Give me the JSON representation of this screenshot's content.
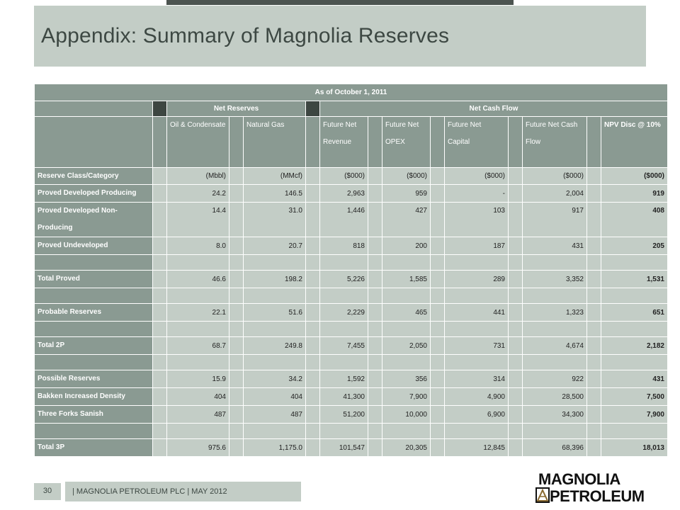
{
  "slide": {
    "title": "Appendix: Summary of Magnolia Reserves",
    "page_number": "30",
    "footer_text": "| MAGNOLIA PETROLEUM PLC | MAY 2012",
    "logo_line1": "MAGNOLIA",
    "logo_line2": "PETROLEUM"
  },
  "table": {
    "caption": "As of October 1, 2011",
    "group_net_reserves": "Net Reserves",
    "group_net_cash_flow": "Net Cash Flow",
    "col_oil": "Oil & Condensate",
    "col_gas": "Natural Gas",
    "col_revenue": "Future Net Revenue",
    "col_opex": "Future Net OPEX",
    "col_capital": "Future Net Capital",
    "col_cashflow": "Future Net Cash Flow",
    "col_npv": "NPV Disc @ 10%",
    "units": {
      "label": "Reserve Class/Category",
      "oil": "(Mbbl)",
      "gas": "(MMcf)",
      "revenue": "($000)",
      "opex": "($000)",
      "capital": "($000)",
      "cashflow": "($000)",
      "npv": "($000)"
    },
    "rows": [
      {
        "name": "Proved Developed Producing",
        "oil": "24.2",
        "gas": "146.5",
        "revenue": "2,963",
        "opex": "959",
        "capital": "-",
        "cashflow": "2,004",
        "npv": "919"
      },
      {
        "name": "Proved Developed Non-Producing",
        "oil": "14.4",
        "gas": "31.0",
        "revenue": "1,446",
        "opex": "427",
        "capital": "103",
        "cashflow": "917",
        "npv": "408"
      },
      {
        "name": "Proved Undeveloped",
        "oil": "8.0",
        "gas": "20.7",
        "revenue": "818",
        "opex": "200",
        "capital": "187",
        "cashflow": "431",
        "npv": "205"
      },
      {
        "name": "Total Proved",
        "oil": "46.6",
        "gas": "198.2",
        "revenue": "5,226",
        "opex": "1,585",
        "capital": "289",
        "cashflow": "3,352",
        "npv": "1,531"
      },
      {
        "name": "Probable Reserves",
        "oil": "22.1",
        "gas": "51.6",
        "revenue": "2,229",
        "opex": "465",
        "capital": "441",
        "cashflow": "1,323",
        "npv": "651"
      },
      {
        "name": "Total 2P",
        "oil": "68.7",
        "gas": "249.8",
        "revenue": "7,455",
        "opex": "2,050",
        "capital": "731",
        "cashflow": "4,674",
        "npv": "2,182"
      },
      {
        "name": "Possible Reserves",
        "oil": "15.9",
        "gas": "34.2",
        "revenue": "1,592",
        "opex": "356",
        "capital": "314",
        "cashflow": "922",
        "npv": "431"
      },
      {
        "name": "Bakken Increased Density",
        "oil": "404",
        "gas": "404",
        "revenue": "41,300",
        "opex": "7,900",
        "capital": "4,900",
        "cashflow": "28,500",
        "npv": "7,500"
      },
      {
        "name": "Three Forks Sanish",
        "oil": "487",
        "gas": "487",
        "revenue": "51,200",
        "opex": "10,000",
        "capital": "6,900",
        "cashflow": "34,300",
        "npv": "7,900"
      },
      {
        "name": "Total 3P",
        "oil": "975.6",
        "gas": "1,175.0",
        "revenue": "101,547",
        "opex": "20,305",
        "capital": "12,845",
        "cashflow": "68,396",
        "npv": "18,013"
      }
    ]
  }
}
